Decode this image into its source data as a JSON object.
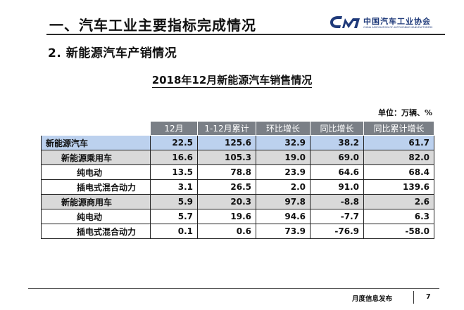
{
  "header": {
    "section_title": "一、汽车工业主要指标完成情况",
    "logo_text": "中国汽车工业协会",
    "logo_subtext": "CHINA ASSOCIATION OF AUTOMOBILE MANUFACTURERS",
    "logo_mark": "CAAM",
    "logo_color": "#1f3a7a"
  },
  "subtitle": "2. 新能源汽车产销情况",
  "table_title": "2018年12月新能源汽车销售情况",
  "unit_note": "单位：万辆、%",
  "table": {
    "headers": [
      "",
      "12月",
      "1-12月累计",
      "环比增长",
      "同比增长",
      "同比累计增长"
    ],
    "rows": [
      {
        "level": "lvl0",
        "name": "新能源汽车",
        "values": [
          "22.5",
          "125.6",
          "32.9",
          "38.2",
          "61.7"
        ]
      },
      {
        "level": "lvl1",
        "name": "新能源乘用车",
        "values": [
          "16.6",
          "105.3",
          "19.0",
          "69.0",
          "82.0"
        ]
      },
      {
        "level": "lvl2",
        "name": "纯电动",
        "values": [
          "13.5",
          "78.8",
          "23.9",
          "64.6",
          "68.4"
        ]
      },
      {
        "level": "lvl2b",
        "name": "插电式混合动力",
        "values": [
          "3.1",
          "26.5",
          "2.0",
          "91.0",
          "139.6"
        ]
      },
      {
        "level": "lvl1",
        "name": "新能源商用车",
        "values": [
          "5.9",
          "20.3",
          "97.8",
          "-8.8",
          "2.6"
        ]
      },
      {
        "level": "lvl2",
        "name": "纯电动",
        "values": [
          "5.7",
          "19.6",
          "94.6",
          "-7.7",
          "6.3"
        ]
      },
      {
        "level": "lvl2b",
        "name": "插电式混合动力",
        "values": [
          "0.1",
          "0.6",
          "73.9",
          "-76.9",
          "-58.0"
        ]
      }
    ],
    "colors": {
      "header_bg": "#7a7f86",
      "total_row_bg": "#bcd1ee",
      "subtotal_row_bg": "#d9d9d9"
    }
  },
  "footer": {
    "label": "月度信息发布",
    "page": "7"
  }
}
